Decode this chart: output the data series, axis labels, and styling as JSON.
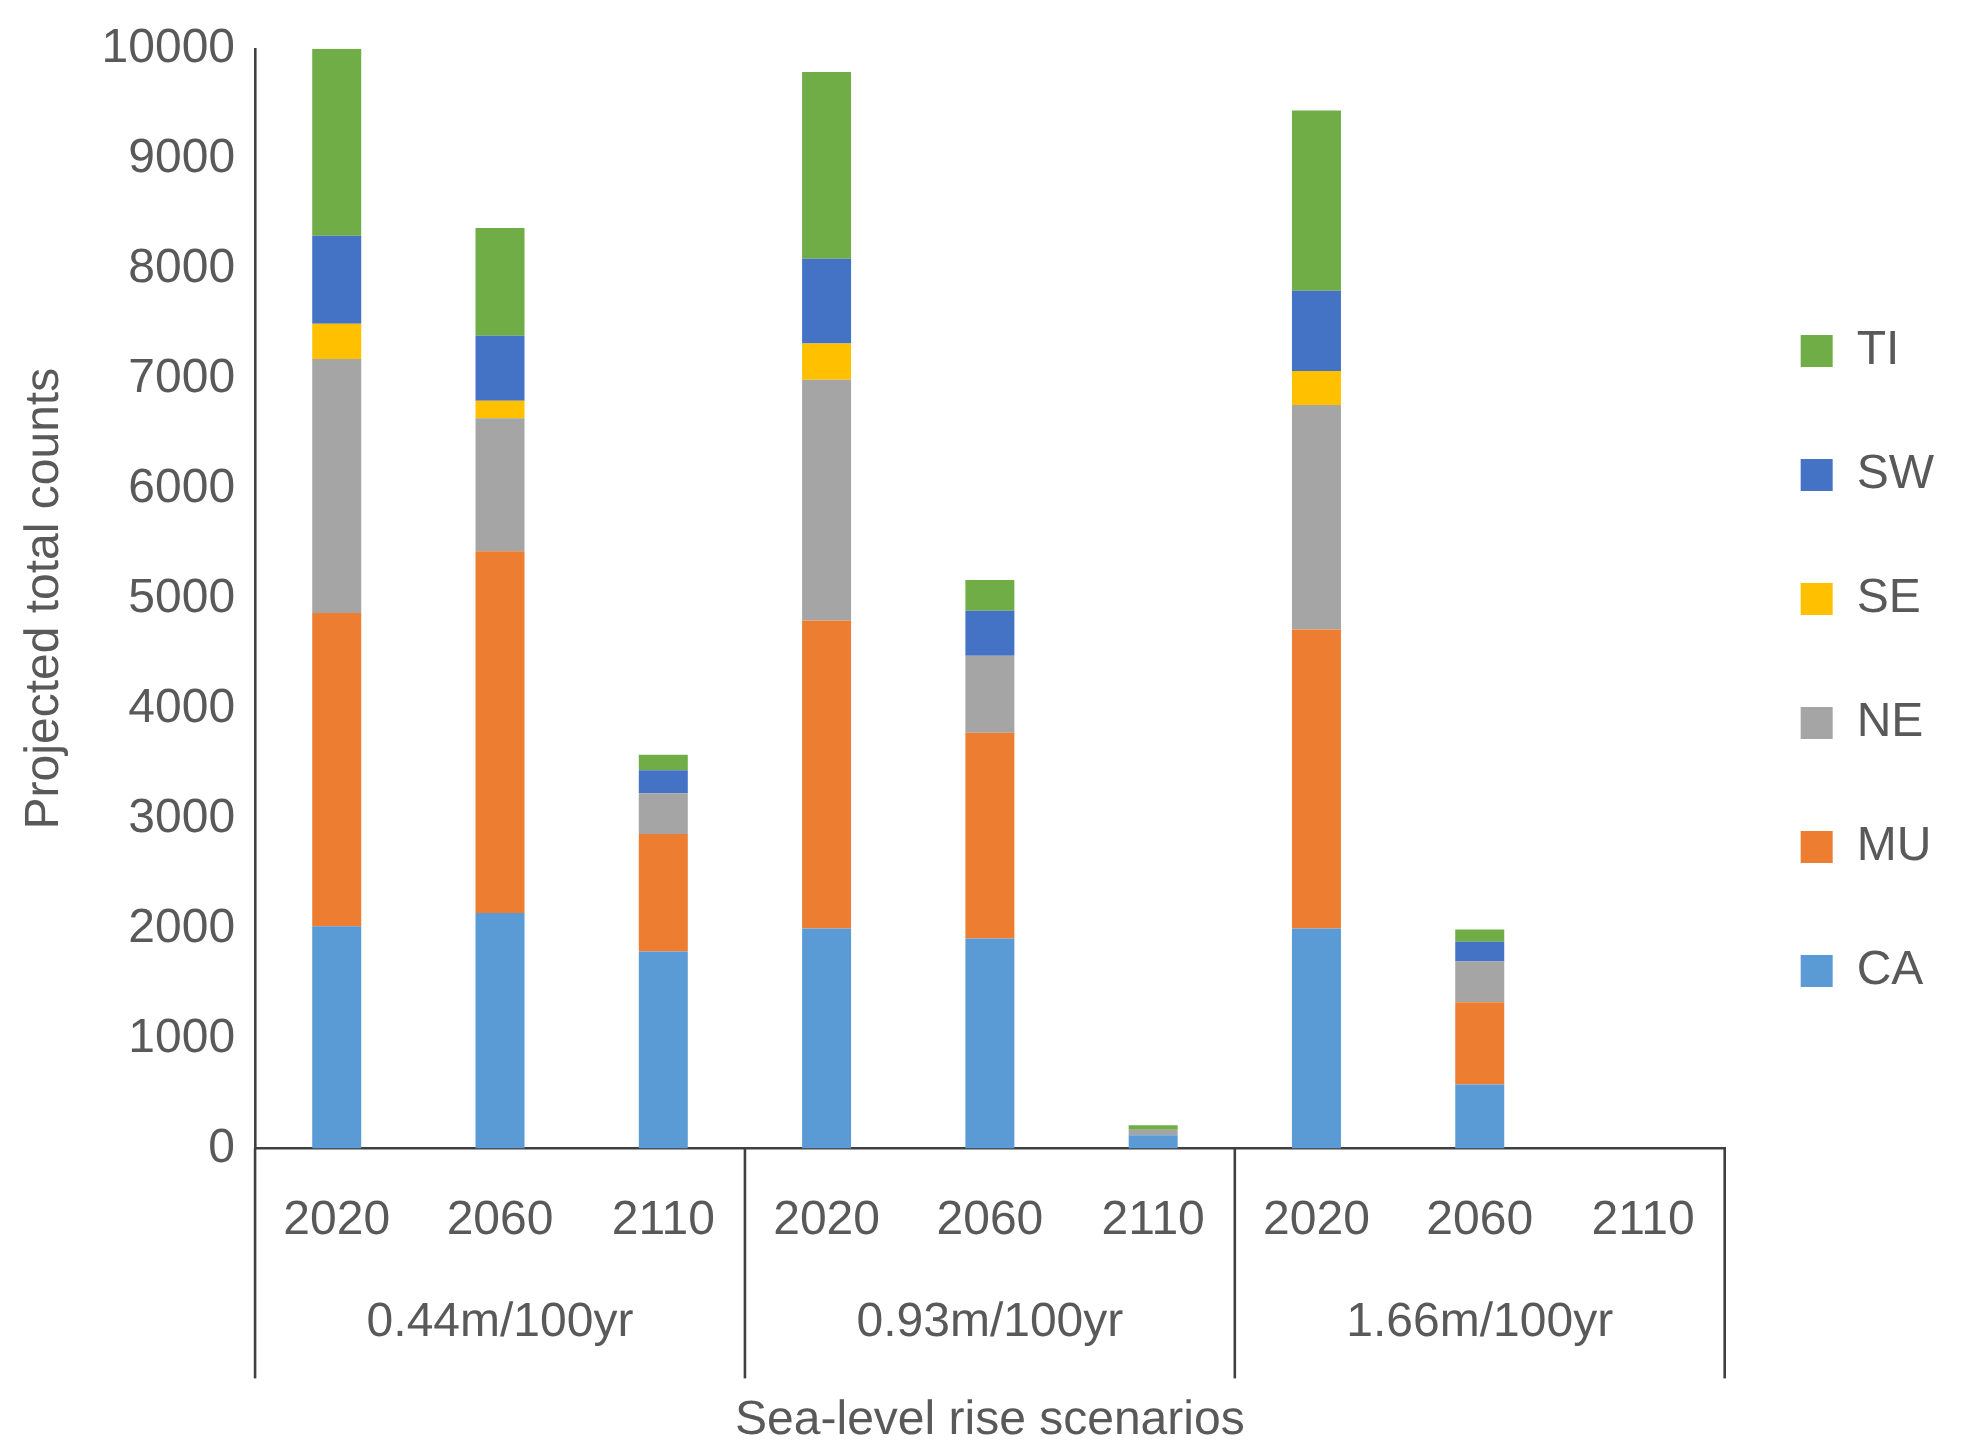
{
  "chart_data": {
    "type": "bar",
    "stacked": true,
    "ylabel": "Projected total counts",
    "xlabel": "Sea-level rise scenarios",
    "categories": [
      "2020",
      "2060",
      "2110",
      "2020",
      "2060",
      "2110",
      "2020",
      "2060",
      "2110"
    ],
    "annotations": [
      "0.44m/100yr",
      "0.93m/100yr",
      "1.66m/100yr"
    ],
    "series": [
      {
        "name": "CA",
        "color": "#5b9bd5",
        "values": [
          2020,
          2140,
          1790,
          2000,
          1910,
          120,
          2000,
          580,
          0
        ]
      },
      {
        "name": "MU",
        "color": "#ed7d31",
        "values": [
          2850,
          3290,
          1070,
          2800,
          1870,
          0,
          2720,
          750,
          0
        ]
      },
      {
        "name": "NE",
        "color": "#a5a5a5",
        "values": [
          2310,
          1210,
          370,
          2190,
          700,
          50,
          2040,
          370,
          0
        ]
      },
      {
        "name": "SE",
        "color": "#ffc000",
        "values": [
          320,
          160,
          0,
          330,
          0,
          0,
          310,
          0,
          0
        ]
      },
      {
        "name": "SW",
        "color": "#4472c4",
        "values": [
          800,
          590,
          210,
          770,
          410,
          0,
          730,
          180,
          0
        ]
      },
      {
        "name": "TI",
        "color": "#70ad47",
        "values": [
          1700,
          980,
          140,
          1700,
          280,
          40,
          1640,
          110,
          0
        ]
      }
    ],
    "ylim": [
      0,
      10000
    ],
    "yticks": [
      0,
      1000,
      2000,
      3000,
      4000,
      5000,
      6000,
      7000,
      8000,
      9000,
      10000
    ],
    "grid": false,
    "legend": "right"
  }
}
